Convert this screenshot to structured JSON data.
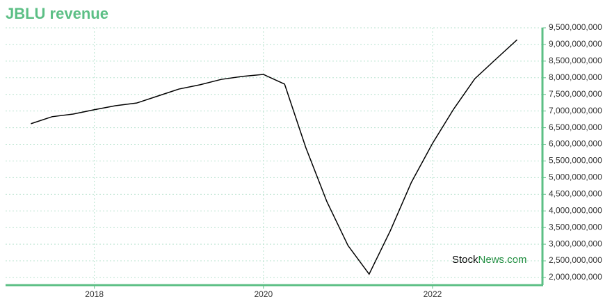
{
  "chart_data": {
    "type": "line",
    "title": "JBLU revenue",
    "x": [
      2017.25,
      2017.5,
      2017.75,
      2018.0,
      2018.25,
      2018.5,
      2018.75,
      2019.0,
      2019.25,
      2019.5,
      2019.75,
      2020.0,
      2020.25,
      2020.5,
      2020.75,
      2021.0,
      2021.25,
      2021.5,
      2021.75,
      2022.0,
      2022.25,
      2022.5,
      2022.75,
      2023.0
    ],
    "series": [
      {
        "name": "JBLU revenue",
        "color": "#000000",
        "values": [
          6620000000,
          6830000000,
          6910000000,
          7040000000,
          7160000000,
          7240000000,
          7450000000,
          7660000000,
          7790000000,
          7950000000,
          8040000000,
          8100000000,
          7810000000,
          5910000000,
          4280000000,
          2960000000,
          2100000000,
          3400000000,
          4860000000,
          6030000000,
          7060000000,
          7970000000,
          8560000000,
          9140000000
        ]
      }
    ],
    "xlim": [
      2016.95,
      2023.3
    ],
    "xticks": [
      2018,
      2020,
      2022
    ],
    "ylim": [
      1770000000,
      9500000000
    ],
    "yticks": [
      {
        "value": 2000000000,
        "label": "2,000,000,000"
      },
      {
        "value": 2500000000,
        "label": "2,500,000,000"
      },
      {
        "value": 3000000000,
        "label": "3,000,000,000"
      },
      {
        "value": 3500000000,
        "label": "3,500,000,000"
      },
      {
        "value": 4000000000,
        "label": "4,000,000,000"
      },
      {
        "value": 4500000000,
        "label": "4,500,000,000"
      },
      {
        "value": 5000000000,
        "label": "5,000,000,000"
      },
      {
        "value": 5500000000,
        "label": "5,500,000,000"
      },
      {
        "value": 6000000000,
        "label": "6,000,000,000"
      },
      {
        "value": 6500000000,
        "label": "6,500,000,000"
      },
      {
        "value": 7000000000,
        "label": "7,000,000,000"
      },
      {
        "value": 7500000000,
        "label": "7,500,000,000"
      },
      {
        "value": 8000000000,
        "label": "8,000,000,000"
      },
      {
        "value": 8500000000,
        "label": "8,500,000,000"
      },
      {
        "value": 9000000000,
        "label": "9,000,000,000"
      },
      {
        "value": 9500000000,
        "label": "9,500,000,000"
      }
    ],
    "grid": true,
    "axis_color": "#5cbf85",
    "watermark": {
      "part1": "Stock",
      "part2": "News.com"
    }
  }
}
